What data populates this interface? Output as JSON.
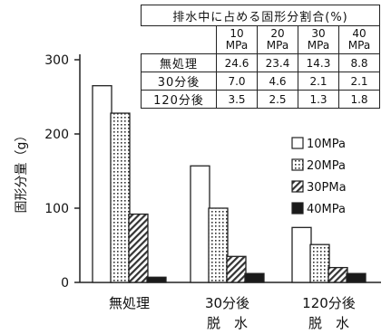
{
  "chart_data": {
    "type": "bar",
    "categories": [
      "無処理",
      "30分後\n脱　水",
      "120分後\n脱　水"
    ],
    "series": [
      {
        "name": "10MPa",
        "values": [
          265,
          157,
          74
        ],
        "pattern": "white"
      },
      {
        "name": "20MPa",
        "values": [
          228,
          100,
          51
        ],
        "pattern": "dots"
      },
      {
        "name": "30PMa",
        "values": [
          92,
          35,
          20
        ],
        "pattern": "hatch"
      },
      {
        "name": "40MPa",
        "values": [
          7,
          12,
          12
        ],
        "pattern": "black"
      }
    ],
    "ylabel": "固形分量（g）",
    "xlabel": "",
    "ylim": [
      0,
      300
    ],
    "yticks": [
      0,
      100,
      200,
      300
    ],
    "legend_position": "right",
    "grid": false
  },
  "table": {
    "title": "排水中に占める固形分割合(%)",
    "columns": [
      "10\nMPa",
      "20\nMPa",
      "30\nMPa",
      "40\nMPa"
    ],
    "rows": [
      {
        "label": "無処理",
        "values": [
          "24.6",
          "23.4",
          "14.3",
          "8.8"
        ]
      },
      {
        "label": "30分後",
        "values": [
          "7.0",
          "4.6",
          "2.1",
          "2.1"
        ]
      },
      {
        "label": "120分後",
        "values": [
          "3.5",
          "2.5",
          "1.3",
          "1.8"
        ]
      }
    ]
  }
}
